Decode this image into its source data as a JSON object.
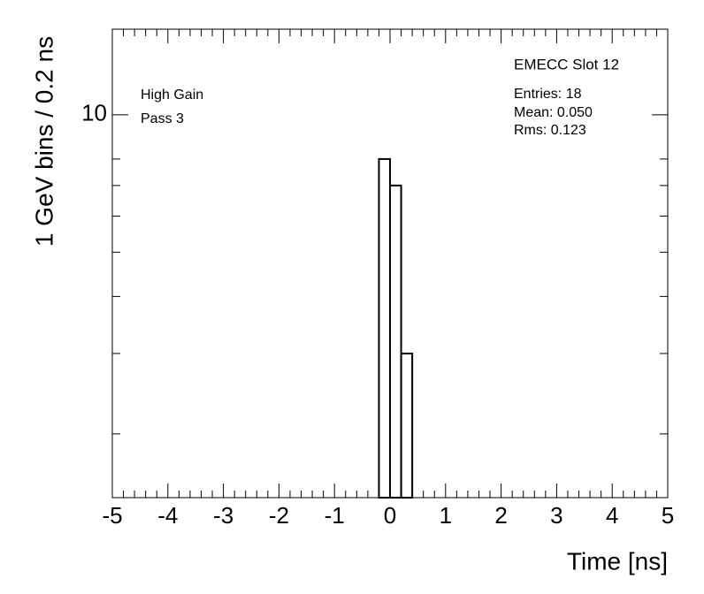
{
  "chart_data": {
    "type": "histogram",
    "xlabel": "Time [ns]",
    "ylabel": "1 GeV bins / 0.2 ns",
    "annotations": [
      "High Gain",
      "Pass 3"
    ],
    "stats_title": "EMECC Slot 12",
    "stats": [
      "Entries: 18",
      "Mean: 0.050",
      "Rms: 0.123"
    ],
    "bins": [
      -0.2,
      0,
      0.2,
      0.4
    ],
    "values": [
      8,
      7,
      3
    ],
    "color": "#000000",
    "xlim": [
      -5,
      5
    ],
    "xticks": [
      -5,
      -4,
      -3,
      -2,
      -1,
      0,
      1,
      2,
      3,
      4,
      5
    ],
    "ylim": [
      1.45,
      15.4
    ],
    "yscale": "log",
    "yticks": [
      10
    ],
    "yminorticks": [
      2,
      3,
      4,
      5,
      6,
      7,
      8
    ]
  }
}
